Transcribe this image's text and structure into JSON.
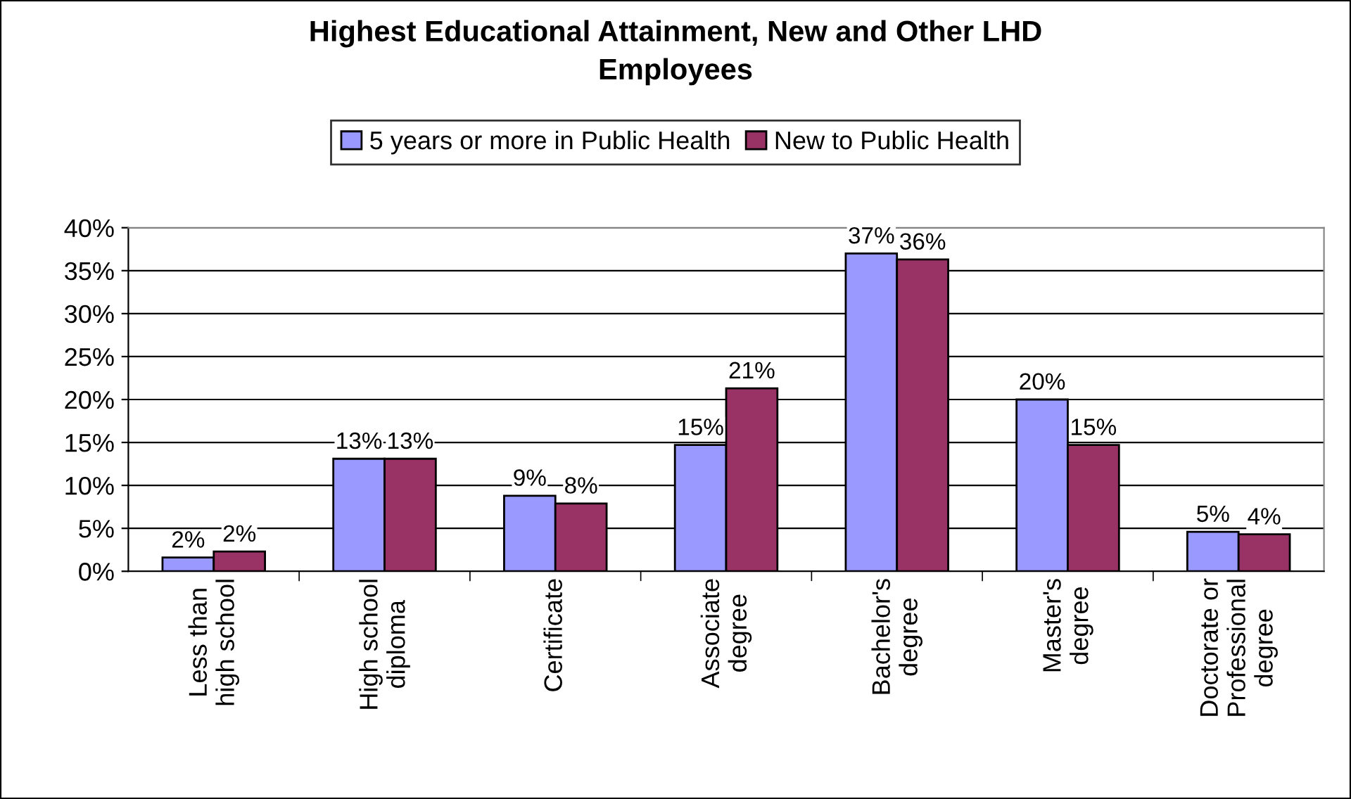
{
  "chart_data": {
    "type": "bar",
    "title": "Highest Educational Attainment, New and Other LHD Employees",
    "categories": [
      "Less than high school",
      "High school diploma",
      "Certificate",
      "Associate degree",
      "Bachelor's degree",
      "Master's degree",
      "Doctorate or Professional degree"
    ],
    "series": [
      {
        "name": "5 years or more in Public Health",
        "color": "#9999ff",
        "values": [
          1.6,
          13.1,
          8.8,
          14.7,
          37.0,
          20.0,
          4.6
        ],
        "value_labels": [
          "2%",
          "13%",
          "9%",
          "15%",
          "37%",
          "20%",
          "5%"
        ]
      },
      {
        "name": "New to Public Health",
        "color": "#993366",
        "values": [
          2.3,
          13.1,
          7.9,
          21.3,
          36.3,
          14.7,
          4.3
        ],
        "value_labels": [
          "2%",
          "13%",
          "8%",
          "21%",
          "36%",
          "15%",
          "4%"
        ]
      }
    ],
    "ylim": [
      0,
      40
    ],
    "yticks": [
      {
        "value": 0,
        "label": "0%"
      },
      {
        "value": 5,
        "label": "5%"
      },
      {
        "value": 10,
        "label": "10%"
      },
      {
        "value": 15,
        "label": "15%"
      },
      {
        "value": 20,
        "label": "20%"
      },
      {
        "value": 25,
        "label": "25%"
      },
      {
        "value": 30,
        "label": "30%"
      },
      {
        "value": 35,
        "label": "35%"
      },
      {
        "value": 40,
        "label": "40%"
      }
    ],
    "grid": "y",
    "legend": "top"
  }
}
